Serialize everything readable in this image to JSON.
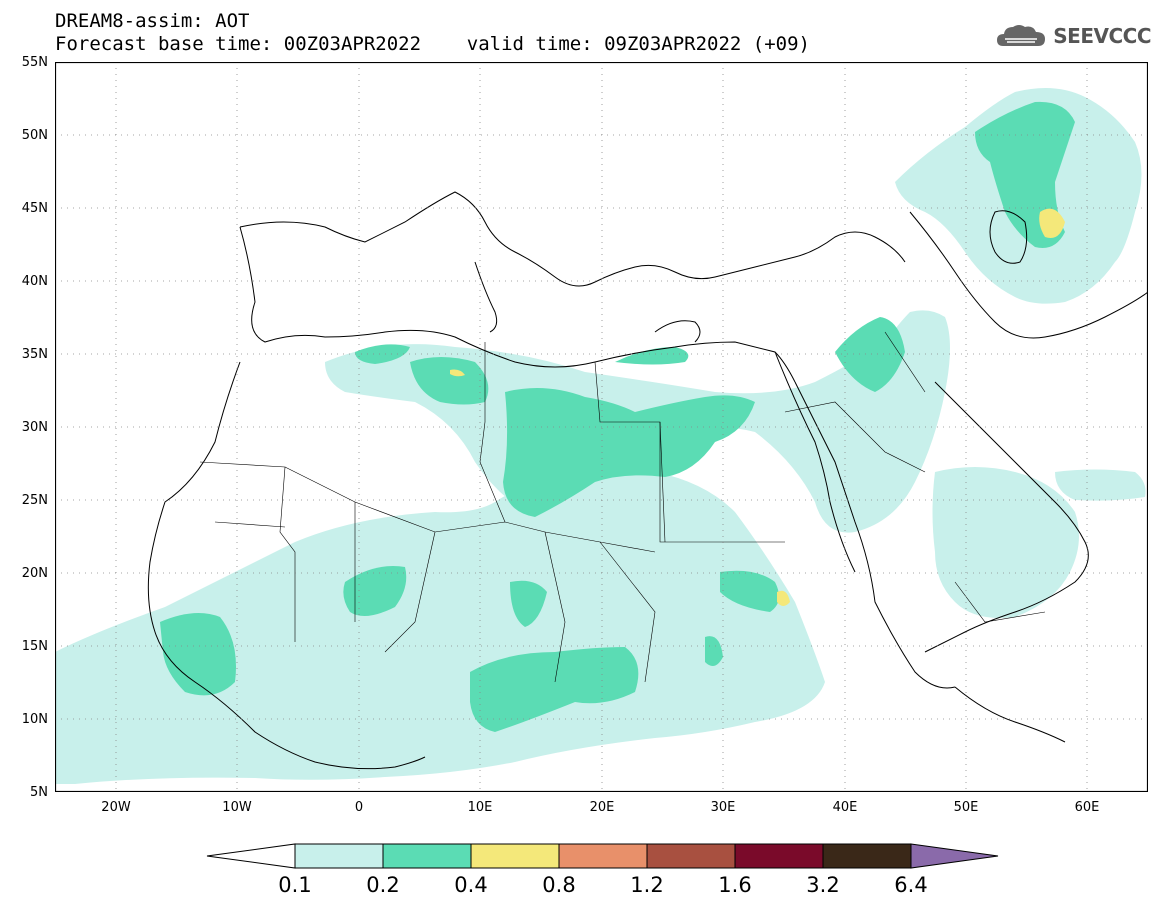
{
  "header": {
    "line1": "DREAM8-assim: AOT",
    "line2": "Forecast base time: 00Z03APR2022    valid time: 09Z03APR2022 (+09)"
  },
  "logo": {
    "text": "SEEVCCC",
    "icon": "cloud-icon"
  },
  "map": {
    "lat_labels": [
      "55N",
      "50N",
      "45N",
      "40N",
      "35N",
      "30N",
      "25N",
      "20N",
      "15N",
      "10N",
      "5N"
    ],
    "lon_labels": [
      "20W",
      "10W",
      "0",
      "10E",
      "20E",
      "30E",
      "40E",
      "50E",
      "60E"
    ],
    "lat_range": [
      5,
      55
    ],
    "lon_range": [
      -25,
      65
    ],
    "grid": "dotted"
  },
  "colorbar": {
    "labels": [
      "0.1",
      "0.2",
      "0.4",
      "0.8",
      "1.2",
      "1.6",
      "3.2",
      "6.4"
    ],
    "colors": [
      "#c8f0eb",
      "#5bdcb4",
      "#f4e87a",
      "#e8906a",
      "#a85040",
      "#7a0a2a",
      "#3a2818",
      "#8a6aaa"
    ]
  },
  "colors": {
    "light": "#c8f0eb",
    "medium": "#5bdcb4",
    "high": "#f4e87a"
  }
}
